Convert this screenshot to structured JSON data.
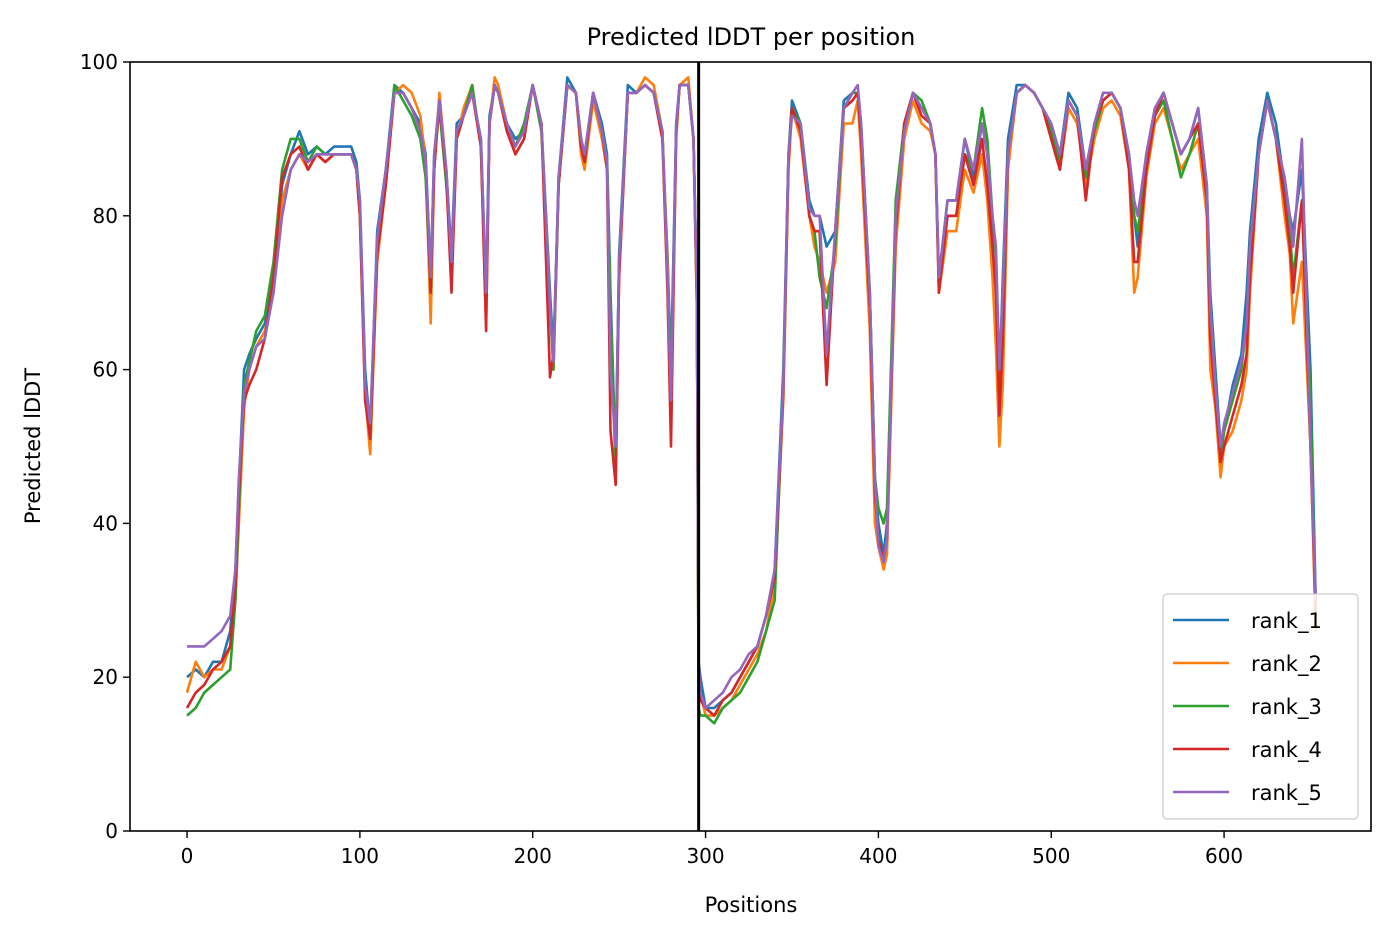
{
  "chart_data": {
    "type": "line",
    "title": "Predicted lDDT per position",
    "xlabel": "Positions",
    "ylabel": "Predicted lDDT",
    "xlim": [
      -33,
      685
    ],
    "ylim": [
      0,
      100
    ],
    "xticks": [
      0,
      100,
      200,
      300,
      400,
      500,
      600
    ],
    "yticks": [
      0,
      20,
      40,
      60,
      80,
      100
    ],
    "grid": false,
    "legend_position": "lower-right",
    "chain_break_x": 296,
    "colors": {
      "rank_1": "#1f77b4",
      "rank_2": "#ff7f0e",
      "rank_3": "#2ca02c",
      "rank_4": "#d62728",
      "rank_5": "#9467bd",
      "chain_break": "#000000"
    },
    "x": [
      0,
      5,
      10,
      15,
      20,
      25,
      28,
      30,
      33,
      36,
      40,
      45,
      50,
      55,
      60,
      65,
      70,
      75,
      80,
      85,
      90,
      95,
      98,
      100,
      103,
      106,
      110,
      115,
      120,
      125,
      130,
      135,
      138,
      141,
      143,
      146,
      150,
      153,
      156,
      160,
      165,
      170,
      173,
      175,
      178,
      180,
      185,
      190,
      195,
      200,
      205,
      210,
      212,
      215,
      220,
      225,
      228,
      230,
      235,
      240,
      243,
      245,
      248,
      250,
      255,
      260,
      265,
      270,
      275,
      278,
      280,
      283,
      285,
      290,
      293,
      295,
      296,
      297,
      300,
      305,
      310,
      315,
      320,
      325,
      330,
      335,
      340,
      345,
      348,
      350,
      355,
      360,
      363,
      366,
      370,
      375,
      380,
      385,
      388,
      390,
      395,
      398,
      400,
      403,
      405,
      410,
      415,
      420,
      425,
      430,
      433,
      435,
      440,
      445,
      450,
      455,
      460,
      463,
      466,
      468,
      470,
      472,
      475,
      480,
      485,
      490,
      495,
      500,
      505,
      510,
      515,
      520,
      525,
      530,
      535,
      540,
      545,
      548,
      550,
      555,
      560,
      565,
      570,
      575,
      580,
      585,
      590,
      592,
      595,
      598,
      600,
      605,
      610,
      613,
      615,
      620,
      625,
      630,
      635,
      638,
      640,
      645,
      650,
      653
    ],
    "series": [
      {
        "name": "rank_1",
        "values": [
          20,
          21,
          20,
          22,
          22,
          26,
          34,
          45,
          60,
          62,
          64,
          66,
          72,
          84,
          88,
          91,
          88,
          89,
          88,
          89,
          89,
          89,
          87,
          82,
          60,
          52,
          78,
          86,
          97,
          96,
          94,
          92,
          88,
          72,
          88,
          95,
          86,
          75,
          92,
          93,
          96,
          90,
          70,
          93,
          97,
          96,
          92,
          90,
          91,
          97,
          92,
          70,
          62,
          85,
          98,
          96,
          90,
          88,
          96,
          92,
          88,
          70,
          48,
          75,
          97,
          96,
          97,
          96,
          90,
          75,
          60,
          92,
          97,
          97,
          90,
          70,
          22,
          20,
          16,
          16,
          17,
          18,
          20,
          22,
          24,
          28,
          34,
          60,
          88,
          95,
          92,
          82,
          80,
          80,
          76,
          78,
          95,
          96,
          96,
          90,
          70,
          46,
          40,
          36,
          40,
          80,
          92,
          96,
          94,
          92,
          88,
          72,
          82,
          82,
          90,
          85,
          92,
          88,
          78,
          75,
          58,
          72,
          90,
          97,
          97,
          96,
          94,
          92,
          88,
          96,
          94,
          86,
          92,
          96,
          96,
          94,
          88,
          80,
          76,
          88,
          94,
          96,
          92,
          88,
          90,
          94,
          84,
          70,
          60,
          50,
          52,
          58,
          62,
          70,
          78,
          90,
          96,
          92,
          84,
          80,
          78,
          86,
          60,
          30
        ]
      },
      {
        "name": "rank_2",
        "values": [
          18,
          22,
          20,
          21,
          21,
          24,
          30,
          40,
          55,
          60,
          63,
          65,
          70,
          82,
          86,
          88,
          86,
          88,
          87,
          88,
          88,
          88,
          86,
          80,
          57,
          49,
          74,
          84,
          96,
          97,
          96,
          93,
          87,
          66,
          86,
          96,
          86,
          72,
          90,
          94,
          97,
          89,
          66,
          92,
          98,
          97,
          92,
          88,
          90,
          97,
          92,
          68,
          60,
          84,
          97,
          96,
          88,
          86,
          95,
          90,
          86,
          68,
          46,
          72,
          96,
          96,
          98,
          97,
          91,
          74,
          56,
          90,
          97,
          98,
          90,
          68,
          20,
          18,
          15,
          15,
          16,
          17,
          19,
          21,
          23,
          26,
          32,
          56,
          86,
          94,
          90,
          80,
          76,
          74,
          70,
          74,
          92,
          92,
          95,
          88,
          65,
          40,
          37,
          34,
          36,
          76,
          90,
          95,
          92,
          91,
          88,
          70,
          78,
          78,
          86,
          83,
          88,
          82,
          72,
          63,
          50,
          58,
          86,
          96,
          97,
          96,
          94,
          90,
          86,
          94,
          92,
          84,
          90,
          94,
          95,
          93,
          86,
          70,
          72,
          85,
          92,
          94,
          90,
          86,
          88,
          90,
          80,
          60,
          55,
          46,
          50,
          52,
          56,
          60,
          70,
          88,
          95,
          90,
          80,
          75,
          66,
          74,
          50,
          26
        ]
      },
      {
        "name": "rank_3",
        "values": [
          15,
          16,
          18,
          19,
          20,
          21,
          30,
          42,
          58,
          61,
          65,
          67,
          74,
          86,
          90,
          90,
          87,
          89,
          88,
          88,
          88,
          88,
          86,
          80,
          58,
          51,
          76,
          85,
          97,
          95,
          93,
          90,
          85,
          70,
          87,
          94,
          84,
          74,
          90,
          93,
          97,
          89,
          68,
          92,
          97,
          96,
          92,
          89,
          92,
          97,
          91,
          68,
          60,
          84,
          97,
          96,
          89,
          87,
          96,
          91,
          87,
          68,
          48,
          74,
          96,
          96,
          97,
          96,
          91,
          72,
          58,
          91,
          97,
          97,
          90,
          70,
          16,
          15,
          15,
          14,
          16,
          17,
          18,
          20,
          22,
          26,
          30,
          58,
          88,
          94,
          92,
          80,
          78,
          72,
          68,
          76,
          94,
          96,
          96,
          92,
          70,
          46,
          42,
          40,
          42,
          82,
          92,
          96,
          95,
          92,
          88,
          72,
          80,
          80,
          88,
          86,
          94,
          90,
          80,
          75,
          56,
          70,
          88,
          96,
          97,
          96,
          94,
          91,
          87,
          95,
          93,
          85,
          91,
          95,
          96,
          94,
          88,
          80,
          78,
          86,
          93,
          95,
          90,
          85,
          88,
          92,
          82,
          68,
          58,
          48,
          52,
          56,
          60,
          66,
          76,
          88,
          95,
          90,
          82,
          78,
          72,
          82,
          56,
          28
        ]
      },
      {
        "name": "rank_4",
        "values": [
          16,
          18,
          19,
          21,
          22,
          24,
          32,
          44,
          56,
          58,
          60,
          64,
          72,
          85,
          88,
          89,
          86,
          88,
          87,
          88,
          88,
          88,
          86,
          80,
          56,
          51,
          75,
          84,
          96,
          96,
          94,
          91,
          87,
          70,
          86,
          95,
          85,
          70,
          90,
          93,
          96,
          89,
          65,
          92,
          97,
          96,
          91,
          88,
          90,
          97,
          92,
          59,
          62,
          84,
          97,
          96,
          89,
          87,
          96,
          91,
          86,
          52,
          45,
          72,
          96,
          96,
          97,
          96,
          90,
          70,
          50,
          91,
          97,
          97,
          90,
          68,
          18,
          17,
          16,
          15,
          17,
          18,
          20,
          22,
          24,
          28,
          33,
          57,
          87,
          94,
          91,
          80,
          78,
          78,
          58,
          78,
          94,
          95,
          96,
          90,
          68,
          44,
          38,
          35,
          38,
          78,
          92,
          96,
          93,
          92,
          88,
          70,
          80,
          80,
          88,
          84,
          90,
          84,
          76,
          70,
          54,
          64,
          88,
          96,
          97,
          96,
          94,
          90,
          86,
          95,
          93,
          82,
          92,
          95,
          96,
          94,
          86,
          74,
          74,
          86,
          93,
          96,
          92,
          88,
          90,
          92,
          82,
          64,
          56,
          48,
          50,
          54,
          58,
          62,
          72,
          88,
          95,
          90,
          82,
          76,
          70,
          82,
          50,
          28
        ]
      },
      {
        "name": "rank_5",
        "values": [
          24,
          24,
          24,
          25,
          26,
          28,
          34,
          46,
          57,
          60,
          63,
          64,
          70,
          80,
          86,
          88,
          87,
          88,
          88,
          88,
          88,
          88,
          86,
          82,
          58,
          53,
          77,
          86,
          96,
          96,
          94,
          91,
          87,
          72,
          88,
          95,
          86,
          74,
          91,
          93,
          96,
          90,
          70,
          92,
          97,
          96,
          92,
          89,
          91,
          97,
          92,
          68,
          61,
          85,
          97,
          96,
          90,
          88,
          96,
          91,
          87,
          60,
          50,
          74,
          96,
          96,
          97,
          96,
          91,
          72,
          56,
          92,
          97,
          97,
          90,
          70,
          22,
          18,
          16,
          17,
          18,
          20,
          21,
          23,
          24,
          28,
          34,
          58,
          88,
          93,
          92,
          81,
          80,
          80,
          62,
          78,
          94,
          96,
          97,
          92,
          70,
          46,
          37,
          35,
          38,
          80,
          91,
          96,
          94,
          92,
          88,
          72,
          82,
          82,
          90,
          86,
          92,
          88,
          80,
          76,
          60,
          70,
          88,
          96,
          97,
          96,
          94,
          92,
          88,
          95,
          93,
          86,
          92,
          96,
          96,
          94,
          88,
          82,
          80,
          88,
          94,
          96,
          92,
          88,
          90,
          94,
          84,
          68,
          58,
          50,
          53,
          57,
          61,
          66,
          76,
          88,
          95,
          90,
          85,
          80,
          76,
          90,
          50,
          30
        ]
      }
    ]
  }
}
